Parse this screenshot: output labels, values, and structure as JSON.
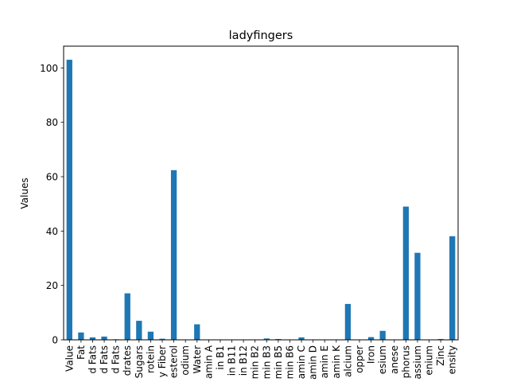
{
  "chart_data": {
    "type": "bar",
    "title": "ladyfingers",
    "xlabel": "",
    "ylabel": "Values",
    "ylim": [
      0,
      108
    ],
    "yticks": [
      0,
      20,
      40,
      60,
      80,
      100
    ],
    "grid": false,
    "legend": "none",
    "bar_color": "#1f77b4",
    "categories": [
      "Value",
      "Fat",
      "d Fats",
      "d Fats",
      "d Fats",
      "drates",
      "Sugars",
      "rotein",
      "y Fiber",
      "esterol",
      "odium",
      "Water",
      "amin A",
      "in B1",
      "in B11",
      "in B12",
      "min B2",
      "min B3",
      "min B5",
      "min B6",
      "amin C",
      "amin D",
      "amin E",
      "amin K",
      "alcium",
      "opper",
      "Iron",
      "esium",
      "anese",
      "phorus",
      "assium",
      "enium",
      "Zinc",
      "ensity"
    ],
    "values": [
      103,
      2.7,
      0.9,
      1.2,
      0.2,
      17.1,
      7.0,
      3.0,
      0.4,
      62.4,
      0.0,
      5.7,
      0.0,
      0.0,
      0.0,
      0.0,
      0.0,
      0.5,
      0.3,
      0.1,
      0.9,
      0.0,
      0.0,
      0.0,
      13.2,
      0.0,
      1.0,
      3.3,
      0.0,
      49.0,
      32.0,
      0.0,
      0.3,
      38.1
    ]
  }
}
